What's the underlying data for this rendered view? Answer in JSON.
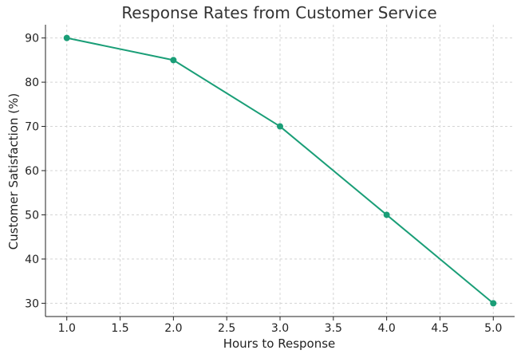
{
  "chart_data": {
    "type": "line",
    "title": "Response Rates from Customer Service",
    "xlabel": "Hours to Response",
    "ylabel": "Customer Satisfaction (%)",
    "x": [
      1.0,
      2.0,
      3.0,
      4.0,
      5.0
    ],
    "series": [
      {
        "values": [
          90,
          85,
          70,
          50,
          30
        ],
        "color": "#1a9e77"
      }
    ],
    "xlim": [
      0.8,
      5.2
    ],
    "ylim": [
      27,
      93
    ],
    "xticks": [
      "1.0",
      "1.5",
      "2.0",
      "2.5",
      "3.0",
      "3.5",
      "4.0",
      "4.5",
      "5.0"
    ],
    "yticks": [
      "30",
      "40",
      "50",
      "60",
      "70",
      "80",
      "90"
    ],
    "grid": true,
    "legend": "none"
  }
}
